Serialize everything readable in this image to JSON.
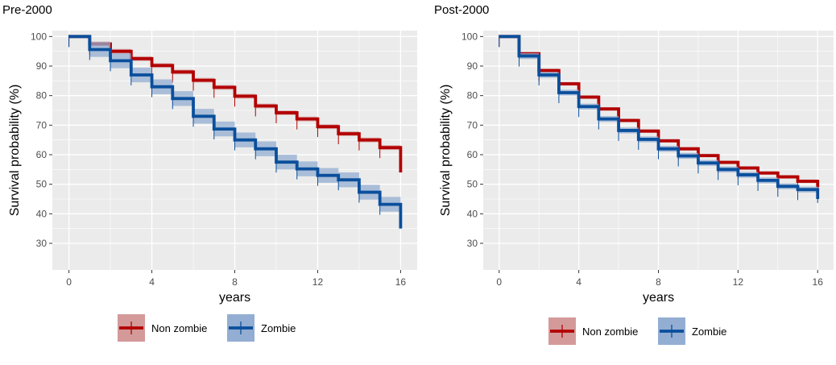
{
  "colors": {
    "non_zombie": "#b30000",
    "non_zombie_fill": "#d49a9a",
    "zombie": "#0a4f9c",
    "zombie_fill": "#93aed2",
    "panel_bg": "#ebebeb",
    "grid": "#ffffff"
  },
  "chart_data": [
    {
      "type": "line",
      "subtype": "kaplan-meier step",
      "title": "Pre-2000",
      "xlabel": "years",
      "ylabel": "Survival probability (%)",
      "xlim": [
        -0.8,
        16.8
      ],
      "ylim": [
        21,
        102
      ],
      "xticks": [
        0,
        4,
        8,
        12,
        16
      ],
      "yticks": [
        30,
        40,
        50,
        60,
        70,
        80,
        90,
        100
      ],
      "legend_position": "bottom",
      "series": [
        {
          "name": "Non zombie",
          "times": [
            0,
            1,
            2,
            3,
            4,
            5,
            6,
            7,
            8,
            9,
            10,
            11,
            12,
            13,
            14,
            15,
            16
          ],
          "values": [
            100,
            97.5,
            95,
            92.5,
            90.2,
            88,
            85.2,
            82.8,
            79.8,
            76.5,
            74.2,
            72.1,
            69.5,
            67.1,
            65,
            62.4,
            58.3
          ],
          "end_drop": 54,
          "band": 0.8
        },
        {
          "name": "Zombie",
          "times": [
            0,
            1,
            2,
            3,
            4,
            5,
            6,
            7,
            8,
            9,
            10,
            11,
            12,
            13,
            14,
            15,
            16
          ],
          "values": [
            100,
            95.6,
            91.8,
            87,
            83,
            79,
            73,
            68.7,
            65,
            62,
            57.5,
            55.2,
            53,
            51.5,
            47.3,
            43.2,
            39.2
          ],
          "end_drop": 35,
          "band": 2.5
        }
      ]
    },
    {
      "type": "line",
      "subtype": "kaplan-meier step",
      "title": "Post-2000",
      "xlabel": "years",
      "ylabel": "Survival probability (%)",
      "xlim": [
        -0.8,
        16.8
      ],
      "ylim": [
        21,
        102
      ],
      "xticks": [
        0,
        4,
        8,
        12,
        16
      ],
      "yticks": [
        30,
        40,
        50,
        60,
        70,
        80,
        90,
        100
      ],
      "legend_position": "bottom",
      "series": [
        {
          "name": "Non zombie",
          "times": [
            0,
            1,
            2,
            3,
            4,
            5,
            6,
            7,
            8,
            9,
            10,
            11,
            12,
            13,
            14,
            15,
            16
          ],
          "values": [
            100,
            94.2,
            88.5,
            84,
            79.5,
            75.5,
            71.6,
            68,
            64.7,
            62,
            59.7,
            57.4,
            55.5,
            53.8,
            52.5,
            51,
            49.5
          ],
          "end_drop": 49,
          "band": 0.6
        },
        {
          "name": "Zombie",
          "times": [
            0,
            1,
            2,
            3,
            4,
            5,
            6,
            7,
            8,
            9,
            10,
            11,
            12,
            13,
            14,
            15,
            16
          ],
          "values": [
            100,
            93.4,
            87,
            81,
            76.3,
            72.1,
            68.2,
            65.2,
            62,
            59.6,
            57.2,
            55,
            53.2,
            51.3,
            49.3,
            48.2,
            47.2
          ],
          "end_drop": 45,
          "band": 1.0
        }
      ]
    }
  ]
}
